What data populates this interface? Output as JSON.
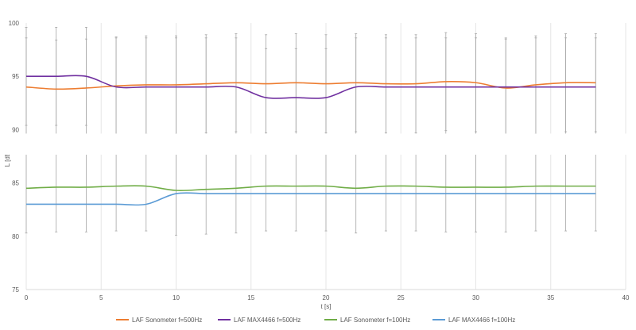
{
  "chart_data": {
    "type": "line",
    "xlabel": "t [s]",
    "ylabel": "L [dB",
    "xlim": [
      0,
      40
    ],
    "ylim": [
      75,
      100
    ],
    "x_ticks": [
      0,
      5,
      10,
      15,
      20,
      25,
      30,
      35,
      40
    ],
    "y_ticks": [
      75,
      80,
      85,
      90,
      95,
      100
    ],
    "grid": "vertical",
    "axis_break_between": [
      87.5,
      90
    ],
    "legend_position": "bottom",
    "series": [
      {
        "name": "LAF Sonometer f=500Hz",
        "color": "#ED7D31",
        "x": [
          0,
          2,
          4,
          6,
          8,
          10,
          12,
          14,
          16,
          18,
          20,
          22,
          24,
          26,
          28,
          30,
          32,
          34,
          36,
          38
        ],
        "y": [
          94.0,
          93.8,
          93.9,
          94.1,
          94.2,
          94.2,
          94.3,
          94.4,
          94.3,
          94.4,
          94.3,
          94.4,
          94.3,
          94.3,
          94.5,
          94.4,
          93.9,
          94.2,
          94.4,
          94.4
        ],
        "error": [
          4.6,
          4.6,
          4.6,
          4.6,
          4.6,
          4.6,
          4.6,
          4.6,
          4.6,
          4.6,
          4.6,
          4.6,
          4.6,
          4.6,
          4.6,
          4.6,
          4.6,
          4.6,
          4.6,
          4.6
        ]
      },
      {
        "name": "LAF MAX4466 f=500Hz",
        "color": "#7030A0",
        "x": [
          0,
          2,
          4,
          6,
          8,
          10,
          12,
          14,
          16,
          18,
          20,
          22,
          24,
          26,
          28,
          30,
          32,
          34,
          36,
          38
        ],
        "y": [
          95.0,
          95.0,
          95.0,
          94.0,
          94.0,
          94.0,
          94.0,
          94.0,
          93.0,
          93.0,
          93.0,
          94.0,
          94.0,
          94.0,
          94.0,
          94.0,
          94.0,
          94.0,
          94.0,
          94.0
        ],
        "error": [
          4.6,
          4.6,
          4.6,
          4.6,
          4.6,
          4.6,
          4.6,
          4.6,
          4.6,
          4.6,
          4.6,
          4.6,
          4.6,
          4.6,
          4.6,
          4.6,
          4.6,
          4.6,
          4.6,
          4.6
        ]
      },
      {
        "name": "LAF Sonometer f=100Hz",
        "color": "#70AD47",
        "x": [
          0,
          2,
          4,
          6,
          8,
          10,
          12,
          14,
          16,
          18,
          20,
          22,
          24,
          26,
          28,
          30,
          32,
          34,
          36,
          38
        ],
        "y": [
          84.5,
          84.6,
          84.6,
          84.7,
          84.7,
          84.3,
          84.4,
          84.5,
          84.7,
          84.7,
          84.7,
          84.5,
          84.7,
          84.7,
          84.6,
          84.6,
          84.6,
          84.7,
          84.7,
          84.7
        ],
        "error": [
          4.2,
          4.2,
          4.2,
          4.2,
          4.2,
          4.2,
          4.2,
          4.2,
          4.2,
          4.2,
          4.2,
          4.2,
          4.2,
          4.2,
          4.2,
          4.2,
          4.2,
          4.2,
          4.2,
          4.2
        ]
      },
      {
        "name": "LAF MAX4466 f=100Hz",
        "color": "#5B9BD5",
        "x": [
          0,
          2,
          4,
          6,
          8,
          10,
          12,
          14,
          16,
          18,
          20,
          22,
          24,
          26,
          28,
          30,
          32,
          34,
          36,
          38
        ],
        "y": [
          83.0,
          83.0,
          83.0,
          83.0,
          83.0,
          84.0,
          84.0,
          84.0,
          84.0,
          84.0,
          84.0,
          84.0,
          84.0,
          84.0,
          84.0,
          84.0,
          84.0,
          84.0,
          84.0,
          84.0
        ],
        "error": [
          0,
          0,
          0,
          0,
          0,
          0,
          0,
          0,
          0,
          0,
          0,
          0,
          0,
          0,
          0,
          0,
          0,
          0,
          0,
          0
        ]
      }
    ]
  }
}
